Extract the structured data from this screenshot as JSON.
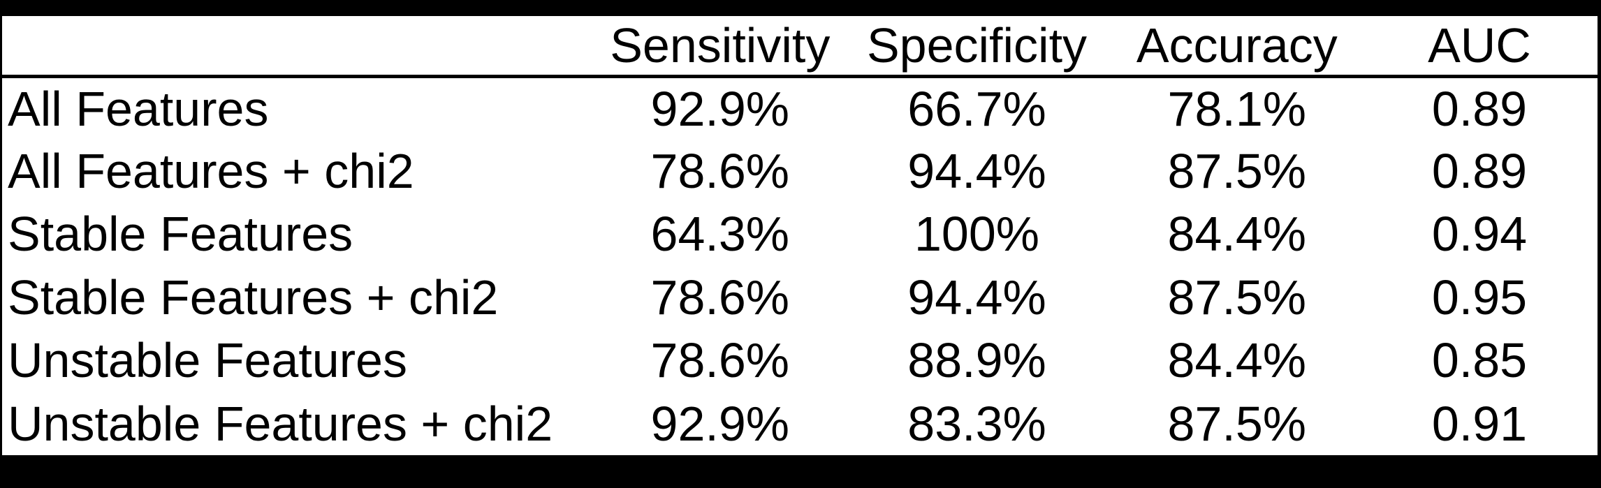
{
  "colors": {
    "text": "#000000",
    "background": "#ffffff",
    "frame": "#000000"
  },
  "chart_data": {
    "type": "table",
    "columns": [
      "",
      "Sensitivity",
      "Specificity",
      "Accuracy",
      "AUC"
    ],
    "rows": [
      {
        "label": "All Features",
        "sensitivity": "92.9%",
        "specificity": "66.7%",
        "accuracy": "78.1%",
        "auc": "0.89"
      },
      {
        "label": "All Features + chi2",
        "sensitivity": "78.6%",
        "specificity": "94.4%",
        "accuracy": "87.5%",
        "auc": "0.89"
      },
      {
        "label": "Stable Features",
        "sensitivity": "64.3%",
        "specificity": "100%",
        "accuracy": "84.4%",
        "auc": "0.94"
      },
      {
        "label": "Stable Features + chi2",
        "sensitivity": "78.6%",
        "specificity": "94.4%",
        "accuracy": "87.5%",
        "auc": "0.95"
      },
      {
        "label": "Unstable Features",
        "sensitivity": "78.6%",
        "specificity": "88.9%",
        "accuracy": "84.4%",
        "auc": "0.85"
      },
      {
        "label": "Unstable Features + chi2",
        "sensitivity": "92.9%",
        "specificity": "83.3%",
        "accuracy": "87.5%",
        "auc": "0.91"
      }
    ]
  }
}
